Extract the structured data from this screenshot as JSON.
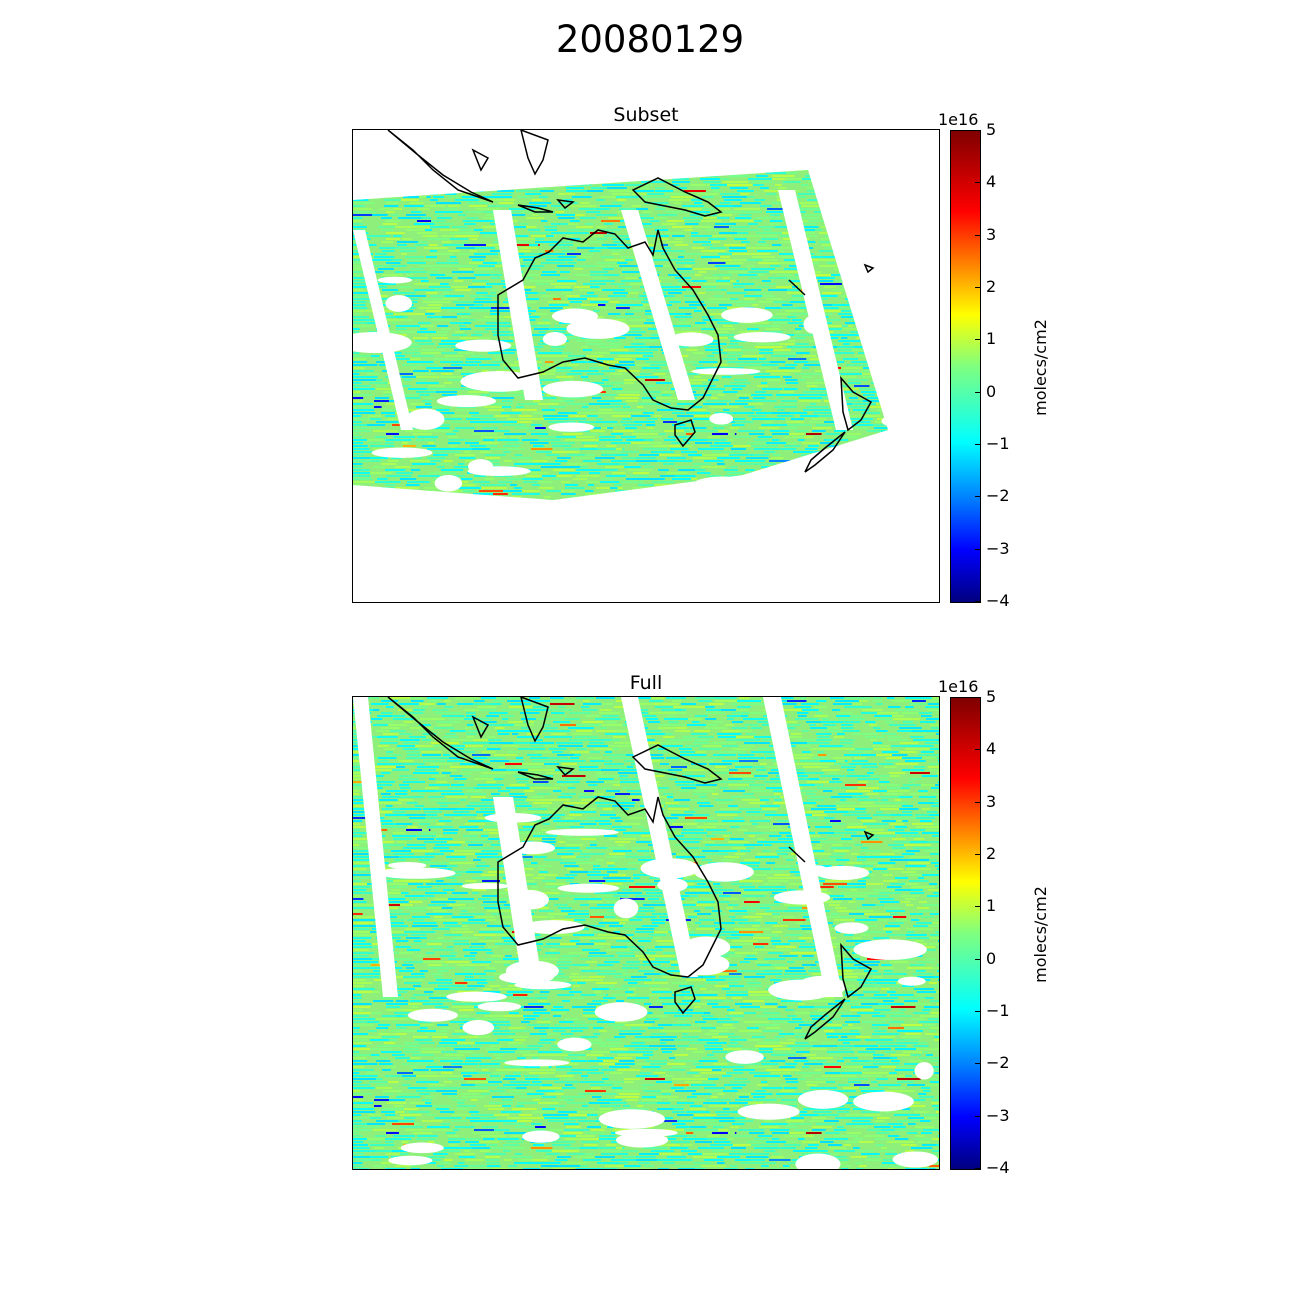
{
  "figure": {
    "title": "20080129"
  },
  "panels": [
    {
      "id": "subset",
      "title": "Subset",
      "colorbar": {
        "exponent_label": "1e16",
        "label": "molecs/cm2",
        "ticks": [
          "5",
          "4",
          "3",
          "2",
          "1",
          "0",
          "−1",
          "−2",
          "−3",
          "−4"
        ]
      }
    },
    {
      "id": "full",
      "title": "Full",
      "colorbar": {
        "exponent_label": "1e16",
        "label": "molecs/cm2",
        "ticks": [
          "5",
          "4",
          "3",
          "2",
          "1",
          "0",
          "−1",
          "−2",
          "−3",
          "−4"
        ]
      }
    }
  ],
  "chart_data": [
    {
      "type": "heatmap",
      "title": "Subset",
      "map_region": "Australia / New Zealand",
      "colormap": "jet",
      "colorbar_range": [
        -4e+16,
        5e+16
      ],
      "colorbar_label": "molecs/cm2",
      "colorbar_ticks": [
        -4,
        -3,
        -2,
        -1,
        0,
        1,
        2,
        3,
        4,
        5
      ],
      "colorbar_multiplier": "1e16",
      "grid": false,
      "typical_value_range": [
        -5000000000000000.0,
        1.5e+16
      ],
      "coverage": "satellite swaths with gaps, subset of domain"
    },
    {
      "type": "heatmap",
      "title": "Full",
      "map_region": "Australia / New Zealand",
      "colormap": "jet",
      "colorbar_range": [
        -4e+16,
        5e+16
      ],
      "colorbar_label": "molecs/cm2",
      "colorbar_ticks": [
        -4,
        -3,
        -2,
        -1,
        0,
        1,
        2,
        3,
        4,
        5
      ],
      "colorbar_multiplier": "1e16",
      "grid": false,
      "typical_value_range": [
        -5000000000000000.0,
        1.5e+16
      ],
      "coverage": "satellite swaths with gaps, full domain"
    }
  ],
  "colors": {
    "jet_low": "#00007f",
    "jet_mid": "#7fff7f",
    "jet_high": "#7f0000",
    "field_main": "#8ef07a",
    "field_cool": "#5ff0a8",
    "coastline": "#000000"
  }
}
